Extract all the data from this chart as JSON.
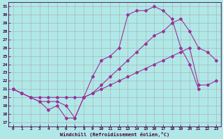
{
  "bg_color": "#b0e8e8",
  "grid_color": "#aaaaaa",
  "line_color": "#993399",
  "xlabel": "Windchill (Refroidissement éolien,°C)",
  "xlim": [
    -0.5,
    23.5
  ],
  "ylim": [
    16.5,
    31.5
  ],
  "yticks": [
    17,
    18,
    19,
    20,
    21,
    22,
    23,
    24,
    25,
    26,
    27,
    28,
    29,
    30,
    31
  ],
  "xticks": [
    0,
    1,
    2,
    3,
    4,
    5,
    6,
    7,
    8,
    9,
    10,
    11,
    12,
    13,
    14,
    15,
    16,
    17,
    18,
    19,
    20,
    21,
    22,
    23
  ],
  "line1_x": [
    0,
    1,
    2,
    3,
    4,
    5,
    6,
    7,
    8,
    9,
    10,
    11,
    12,
    13,
    14,
    15,
    16,
    17,
    18,
    19,
    20,
    21
  ],
  "line1_y": [
    21,
    20.5,
    20.0,
    19.5,
    18.5,
    19.0,
    17.5,
    17.5,
    20.0,
    22.5,
    24.5,
    25.0,
    26.0,
    30.0,
    30.5,
    30.5,
    31.0,
    30.5,
    29.5,
    26.0,
    24.0,
    21.0
  ],
  "line2_x": [
    0,
    1,
    2,
    3,
    4,
    5,
    6,
    7,
    8,
    9,
    10,
    11,
    12,
    13,
    14,
    15,
    16,
    17,
    18,
    19,
    20,
    21,
    22,
    23
  ],
  "line2_y": [
    21,
    20.5,
    20.0,
    19.5,
    19.5,
    19.5,
    19.0,
    17.5,
    20.0,
    20.5,
    21.5,
    22.5,
    23.5,
    24.5,
    25.5,
    26.5,
    27.5,
    28.0,
    29.0,
    29.5,
    28.0,
    26.0,
    25.5,
    24.5
  ],
  "line3_x": [
    0,
    1,
    2,
    3,
    4,
    5,
    6,
    7,
    8,
    9,
    10,
    11,
    12,
    13,
    14,
    15,
    16,
    17,
    18,
    19,
    20,
    21,
    22,
    23
  ],
  "line3_y": [
    21,
    20.5,
    20.0,
    20.0,
    20.0,
    20.0,
    20.0,
    20.0,
    20.0,
    20.5,
    21.0,
    21.5,
    22.0,
    22.5,
    23.0,
    23.5,
    24.0,
    24.5,
    25.0,
    25.5,
    26.0,
    21.5,
    21.5,
    22.0
  ]
}
